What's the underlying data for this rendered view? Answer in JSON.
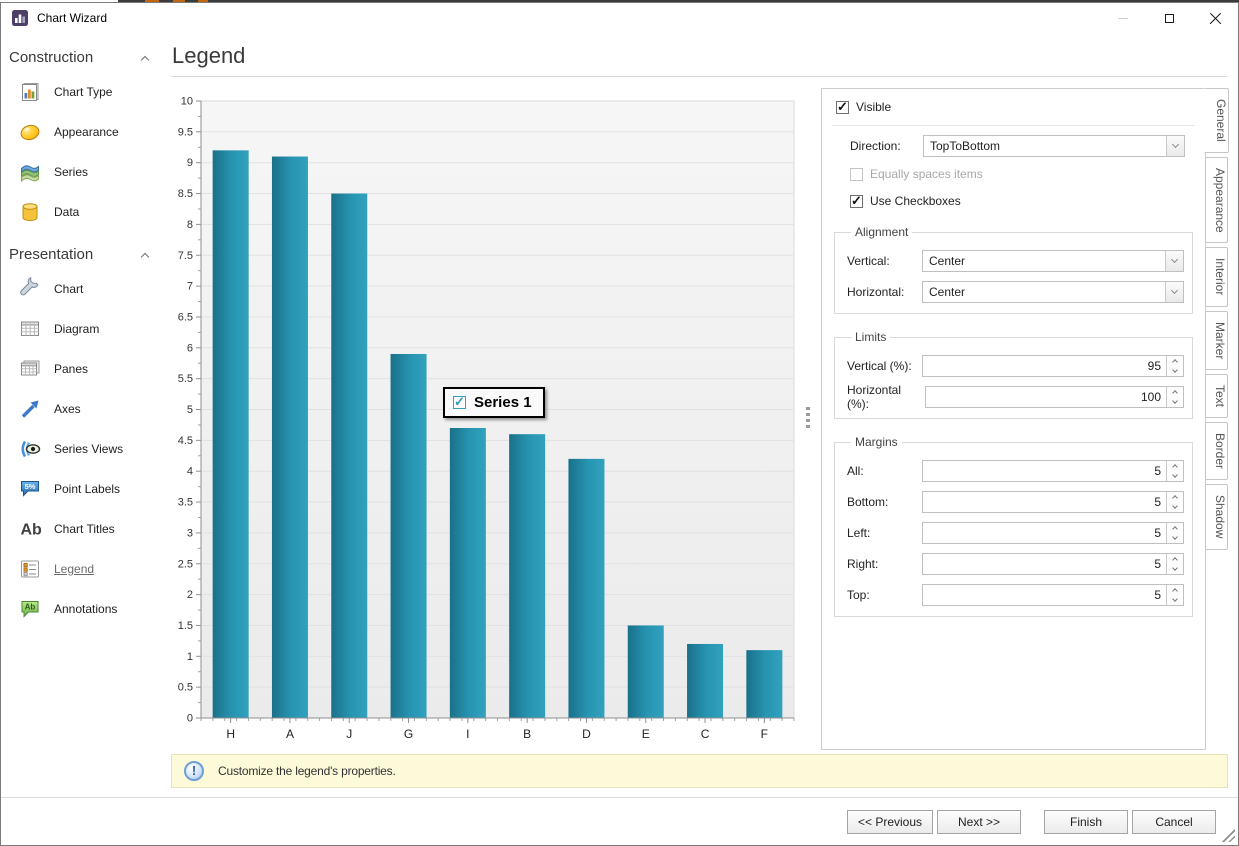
{
  "window": {
    "title": "Chart Wizard"
  },
  "sidebar": {
    "sections": [
      {
        "label": "Construction",
        "items": [
          {
            "label": "Chart Type"
          },
          {
            "label": "Appearance"
          },
          {
            "label": "Series"
          },
          {
            "label": "Data"
          }
        ]
      },
      {
        "label": "Presentation",
        "items": [
          {
            "label": "Chart"
          },
          {
            "label": "Diagram"
          },
          {
            "label": "Panes"
          },
          {
            "label": "Axes"
          },
          {
            "label": "Series Views"
          },
          {
            "label": "Point Labels",
            "icon_text": "5%"
          },
          {
            "label": "Chart Titles",
            "icon_text": "Ab"
          },
          {
            "label": "Legend",
            "selected": true
          },
          {
            "label": "Annotations",
            "icon_text": "Ab"
          }
        ]
      }
    ]
  },
  "main": {
    "title": "Legend"
  },
  "chart_data": {
    "type": "bar",
    "categories": [
      "H",
      "A",
      "J",
      "G",
      "I",
      "B",
      "D",
      "E",
      "C",
      "F"
    ],
    "values": [
      9.2,
      9.1,
      8.5,
      5.9,
      4.7,
      4.6,
      4.2,
      1.5,
      1.2,
      1.1
    ],
    "title": "",
    "xlabel": "",
    "ylabel": "",
    "ylim": [
      0,
      10
    ],
    "ytick_step": 0.5,
    "grid": true,
    "bar_color_start": "#1a7089",
    "bar_color_end": "#31a1be",
    "legend_overlay": {
      "label": "Series 1",
      "checked": true
    }
  },
  "panel": {
    "visible_label": "Visible",
    "visible_checked": true,
    "direction_label": "Direction:",
    "direction_value": "TopToBottom",
    "equally_label": "Equally spaces items",
    "equally_disabled": true,
    "use_checkboxes_label": "Use Checkboxes",
    "use_checkboxes_checked": true,
    "alignment": {
      "title": "Alignment",
      "vertical_label": "Vertical:",
      "vertical_value": "Center",
      "horizontal_label": "Horizontal:",
      "horizontal_value": "Center"
    },
    "limits": {
      "title": "Limits",
      "vertical_label": "Vertical (%):",
      "vertical_value": "95",
      "horizontal_label": "Horizontal (%):",
      "horizontal_value": "100"
    },
    "margins": {
      "title": "Margins",
      "rows": [
        {
          "label": "All:",
          "value": "5"
        },
        {
          "label": "Bottom:",
          "value": "5"
        },
        {
          "label": "Left:",
          "value": "5"
        },
        {
          "label": "Right:",
          "value": "5"
        },
        {
          "label": "Top:",
          "value": "5"
        }
      ]
    }
  },
  "side_tabs": [
    {
      "label": "General",
      "active": true
    },
    {
      "label": "Appearance"
    },
    {
      "label": "Interior"
    },
    {
      "label": "Marker"
    },
    {
      "label": "Text"
    },
    {
      "label": "Border"
    },
    {
      "label": "Shadow"
    }
  ],
  "info_bar": {
    "text": "Customize the legend's properties."
  },
  "footer": {
    "buttons": [
      {
        "label": "<< Previous"
      },
      {
        "label": "Next >>"
      },
      {
        "label": "Finish"
      },
      {
        "label": "Cancel"
      }
    ]
  }
}
